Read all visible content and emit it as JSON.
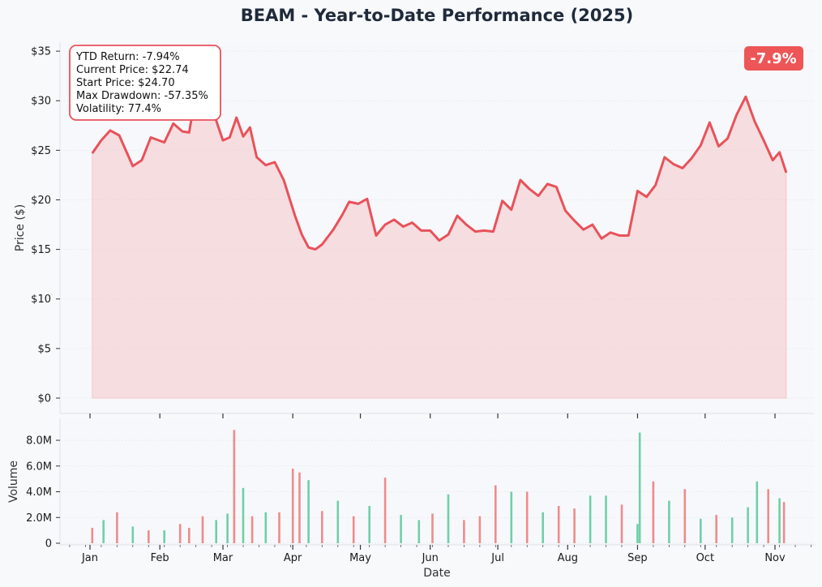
{
  "title": "BEAM - Year-to-Date Performance (2025)",
  "colors": {
    "line": "#e8525a",
    "fill": "#f5c6c8",
    "up": "#6fcfa8",
    "down": "#ee8c8c",
    "badge": "#ee5556",
    "background": "#f8f9fb"
  },
  "badge": "-7.9%",
  "stats": [
    "YTD Return: -7.94%",
    "Current Price: $22.74",
    "Start Price: $24.70",
    "Max Drawdown: -57.35%",
    "Volatility: 77.4%"
  ],
  "chart_data": [
    {
      "type": "area",
      "name": "price",
      "ylabel": "Price ($)",
      "xlabel": "",
      "ylim": [
        0,
        35.5
      ],
      "y_ticks": [
        0,
        5,
        10,
        15,
        20,
        25,
        30,
        35
      ],
      "y_tick_labels": [
        "$0",
        "$5",
        "$10",
        "$15",
        "$20",
        "$25",
        "$30",
        "$35"
      ],
      "grid": true,
      "series": [
        {
          "x": [
            "2025-01-02",
            "2025-01-06",
            "2025-01-10",
            "2025-01-14",
            "2025-01-20",
            "2025-01-24",
            "2025-01-28",
            "2025-02-03",
            "2025-02-07",
            "2025-02-11",
            "2025-02-14",
            "2025-02-18",
            "2025-02-22",
            "2025-02-26",
            "2025-03-01",
            "2025-03-04",
            "2025-03-07",
            "2025-03-10",
            "2025-03-13",
            "2025-03-16",
            "2025-03-20",
            "2025-03-24",
            "2025-03-28",
            "2025-04-02",
            "2025-04-05",
            "2025-04-08",
            "2025-04-11",
            "2025-04-14",
            "2025-04-19",
            "2025-04-23",
            "2025-04-26",
            "2025-04-30",
            "2025-05-04",
            "2025-05-08",
            "2025-05-12",
            "2025-05-16",
            "2025-05-20",
            "2025-05-24",
            "2025-05-28",
            "2025-06-01",
            "2025-06-05",
            "2025-06-09",
            "2025-06-13",
            "2025-06-17",
            "2025-06-21",
            "2025-06-25",
            "2025-06-29",
            "2025-07-03",
            "2025-07-07",
            "2025-07-11",
            "2025-07-15",
            "2025-07-19",
            "2025-07-23",
            "2025-07-27",
            "2025-07-31",
            "2025-08-04",
            "2025-08-08",
            "2025-08-12",
            "2025-08-16",
            "2025-08-20",
            "2025-08-24",
            "2025-08-28",
            "2025-09-01",
            "2025-09-05",
            "2025-09-09",
            "2025-09-13",
            "2025-09-17",
            "2025-09-21",
            "2025-09-25",
            "2025-09-29",
            "2025-10-03",
            "2025-10-07",
            "2025-10-11",
            "2025-10-15",
            "2025-10-19",
            "2025-10-23",
            "2025-10-27",
            "2025-10-31",
            "2025-11-03",
            "2025-11-06"
          ],
          "y": [
            24.7,
            26.0,
            27.0,
            26.5,
            23.4,
            24.0,
            26.3,
            25.8,
            27.7,
            26.9,
            26.8,
            32.0,
            33.9,
            28.0,
            26.0,
            26.3,
            28.3,
            26.4,
            27.3,
            24.3,
            23.5,
            23.8,
            22.0,
            18.4,
            16.5,
            15.2,
            15.0,
            15.5,
            17.0,
            18.5,
            19.8,
            19.6,
            20.1,
            16.4,
            17.5,
            18.0,
            17.3,
            17.7,
            16.9,
            16.9,
            15.9,
            16.5,
            18.4,
            17.5,
            16.8,
            16.9,
            16.8,
            19.9,
            19.0,
            22.0,
            21.1,
            20.4,
            21.6,
            21.3,
            18.9,
            17.9,
            17.0,
            17.5,
            16.1,
            16.7,
            16.4,
            16.4,
            20.9,
            20.3,
            21.5,
            24.3,
            23.6,
            23.2,
            24.2,
            25.5,
            27.8,
            25.4,
            26.2,
            28.6,
            30.4,
            27.9,
            26.0,
            24.0,
            24.8,
            22.74
          ]
        }
      ]
    },
    {
      "type": "bar",
      "name": "volume",
      "ylabel": "Volume",
      "xlabel": "Date",
      "ylim": [
        0,
        9200000
      ],
      "y_ticks": [
        0,
        2000000,
        4000000,
        6000000,
        8000000
      ],
      "y_tick_labels": [
        "0",
        "2.0M",
        "4.0M",
        "6.0M",
        "8.0M"
      ],
      "x_ticks": [
        "2025-01-01",
        "2025-02-01",
        "2025-03-01",
        "2025-04-01",
        "2025-05-01",
        "2025-06-01",
        "2025-07-01",
        "2025-08-01",
        "2025-09-01",
        "2025-10-01",
        "2025-11-01"
      ],
      "x_tick_labels": [
        "Jan",
        "Feb",
        "Mar",
        "Apr",
        "May",
        "Jun",
        "Jul",
        "Aug",
        "Sep",
        "Oct",
        "Nov"
      ],
      "grid": true,
      "series": [
        {
          "x": [
            "2025-01-02",
            "2025-01-07",
            "2025-01-13",
            "2025-01-20",
            "2025-01-27",
            "2025-02-03",
            "2025-02-10",
            "2025-02-14",
            "2025-02-20",
            "2025-02-26",
            "2025-03-03",
            "2025-03-06",
            "2025-03-10",
            "2025-03-14",
            "2025-03-20",
            "2025-03-26",
            "2025-04-01",
            "2025-04-04",
            "2025-04-08",
            "2025-04-14",
            "2025-04-21",
            "2025-04-28",
            "2025-05-05",
            "2025-05-12",
            "2025-05-19",
            "2025-05-27",
            "2025-06-02",
            "2025-06-09",
            "2025-06-16",
            "2025-06-23",
            "2025-06-30",
            "2025-07-07",
            "2025-07-14",
            "2025-07-21",
            "2025-07-28",
            "2025-08-04",
            "2025-08-11",
            "2025-08-18",
            "2025-08-25",
            "2025-09-01",
            "2025-09-02",
            "2025-09-08",
            "2025-09-15",
            "2025-09-22",
            "2025-09-29",
            "2025-10-06",
            "2025-10-13",
            "2025-10-20",
            "2025-10-24",
            "2025-10-29",
            "2025-11-03",
            "2025-11-05"
          ],
          "y": [
            1200000,
            1800000,
            2400000,
            1300000,
            1000000,
            1000000,
            1500000,
            1200000,
            2100000,
            1800000,
            2300000,
            8800000,
            4300000,
            2100000,
            2400000,
            2400000,
            5800000,
            5500000,
            4900000,
            2500000,
            3300000,
            2100000,
            2900000,
            5100000,
            2200000,
            1800000,
            2300000,
            3800000,
            1800000,
            2100000,
            4500000,
            4000000,
            4000000,
            2400000,
            2900000,
            2700000,
            3700000,
            3700000,
            3000000,
            1500000,
            8600000,
            4800000,
            3300000,
            4200000,
            1900000,
            2200000,
            2000000,
            2800000,
            4800000,
            4200000,
            3500000,
            3200000
          ],
          "direction": [
            "down",
            "up",
            "down",
            "up",
            "down",
            "up",
            "down",
            "down",
            "down",
            "up",
            "up",
            "down",
            "up",
            "down",
            "up",
            "down",
            "down",
            "down",
            "up",
            "down",
            "up",
            "down",
            "up",
            "down",
            "up",
            "up",
            "down",
            "up",
            "down",
            "down",
            "down",
            "up",
            "down",
            "up",
            "down",
            "down",
            "up",
            "up",
            "down",
            "up",
            "up",
            "down",
            "up",
            "down",
            "up",
            "down",
            "up",
            "up",
            "up",
            "down",
            "up",
            "down"
          ]
        }
      ]
    }
  ]
}
